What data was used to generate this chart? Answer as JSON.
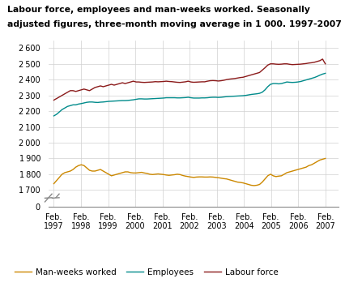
{
  "title_line1": "Labour force, employees and man-weeks worked. Seasonally",
  "title_line2": "adjusted figures, three-month moving average in 1 000. 1997-2007",
  "ylim_main": [
    1650,
    2650
  ],
  "ylim_break": [
    0,
    30
  ],
  "yticks_main": [
    1700,
    1800,
    1900,
    2000,
    2100,
    2200,
    2300,
    2400,
    2500,
    2600
  ],
  "background_color": "#ffffff",
  "grid_color": "#d0d0d0",
  "line_colors": {
    "labour_force": "#8B1A1A",
    "employees": "#008B8B",
    "man_weeks": "#CC8800"
  },
  "legend_labels": [
    "Man-weeks worked",
    "Employees",
    "Labour force"
  ],
  "x_tick_labels": [
    "Feb.\n1997",
    "Feb.\n1998",
    "Feb.\n1999",
    "Feb.\n2000",
    "Feb.\n2001",
    "Feb.\n2002",
    "Feb.\n2003",
    "Feb.\n2004",
    "Feb.\n2005",
    "Feb.\n2006",
    "Feb.\n2007"
  ],
  "labour_force": [
    2270,
    2280,
    2290,
    2300,
    2310,
    2320,
    2330,
    2330,
    2325,
    2330,
    2335,
    2340,
    2335,
    2330,
    2340,
    2350,
    2355,
    2360,
    2355,
    2360,
    2365,
    2370,
    2365,
    2370,
    2375,
    2380,
    2375,
    2380,
    2385,
    2390,
    2385,
    2385,
    2383,
    2382,
    2383,
    2384,
    2385,
    2387,
    2386,
    2387,
    2388,
    2390,
    2388,
    2387,
    2385,
    2383,
    2382,
    2384,
    2386,
    2390,
    2385,
    2383,
    2384,
    2385,
    2386,
    2386,
    2390,
    2393,
    2394,
    2393,
    2391,
    2393,
    2396,
    2400,
    2403,
    2405,
    2407,
    2410,
    2413,
    2415,
    2420,
    2425,
    2430,
    2435,
    2440,
    2445,
    2460,
    2475,
    2492,
    2500,
    2500,
    2498,
    2497,
    2498,
    2500,
    2500,
    2497,
    2495,
    2496,
    2497,
    2498,
    2500,
    2502,
    2505,
    2507,
    2510,
    2515,
    2520,
    2530,
    2500
  ],
  "employees": [
    2170,
    2180,
    2195,
    2210,
    2220,
    2230,
    2235,
    2240,
    2240,
    2245,
    2248,
    2252,
    2256,
    2258,
    2258,
    2256,
    2255,
    2257,
    2258,
    2260,
    2262,
    2263,
    2264,
    2265,
    2266,
    2267,
    2267,
    2268,
    2270,
    2272,
    2275,
    2278,
    2278,
    2277,
    2277,
    2278,
    2279,
    2280,
    2281,
    2282,
    2283,
    2285,
    2285,
    2285,
    2285,
    2284,
    2284,
    2285,
    2286,
    2288,
    2285,
    2283,
    2283,
    2283,
    2284,
    2284,
    2285,
    2287,
    2288,
    2288,
    2287,
    2288,
    2290,
    2292,
    2293,
    2294,
    2295,
    2296,
    2297,
    2298,
    2300,
    2303,
    2306,
    2308,
    2310,
    2313,
    2320,
    2335,
    2355,
    2370,
    2375,
    2375,
    2373,
    2375,
    2380,
    2385,
    2383,
    2382,
    2383,
    2385,
    2388,
    2393,
    2398,
    2403,
    2408,
    2413,
    2420,
    2428,
    2435,
    2440
  ],
  "man_weeks": [
    1740,
    1760,
    1780,
    1800,
    1810,
    1815,
    1820,
    1830,
    1845,
    1855,
    1860,
    1855,
    1840,
    1825,
    1820,
    1820,
    1825,
    1830,
    1820,
    1810,
    1800,
    1790,
    1795,
    1800,
    1805,
    1810,
    1815,
    1815,
    1810,
    1808,
    1808,
    1810,
    1812,
    1808,
    1805,
    1800,
    1798,
    1800,
    1802,
    1800,
    1798,
    1795,
    1793,
    1795,
    1797,
    1800,
    1798,
    1792,
    1788,
    1785,
    1782,
    1780,
    1782,
    1783,
    1783,
    1782,
    1782,
    1783,
    1782,
    1780,
    1778,
    1775,
    1772,
    1770,
    1765,
    1760,
    1755,
    1750,
    1748,
    1745,
    1740,
    1735,
    1730,
    1728,
    1730,
    1735,
    1750,
    1770,
    1790,
    1800,
    1790,
    1785,
    1788,
    1790,
    1800,
    1810,
    1815,
    1820,
    1825,
    1830,
    1835,
    1840,
    1845,
    1855,
    1860,
    1870,
    1880,
    1890,
    1895,
    1900
  ]
}
